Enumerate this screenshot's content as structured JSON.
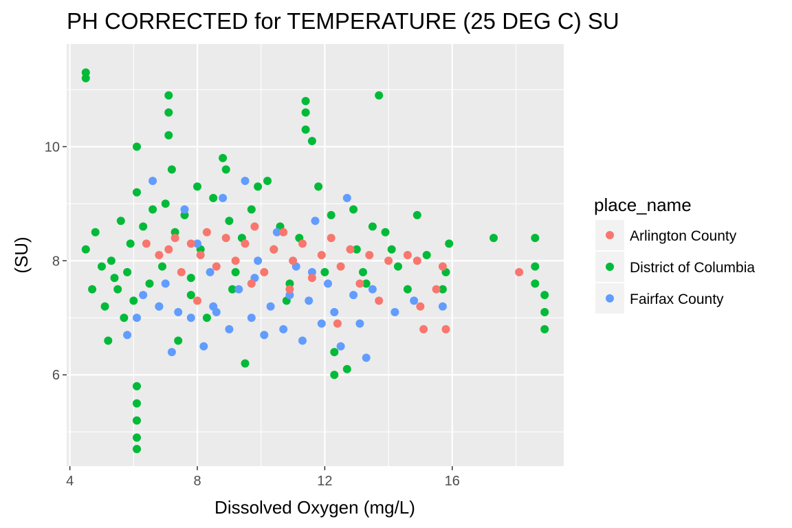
{
  "chart_data": {
    "type": "scatter",
    "title": "PH CORRECTED for TEMPERATURE (25 DEG C) SU",
    "xlabel": "Dissolved Oxygen (mg/L)",
    "ylabel": "(SU)",
    "xlim": [
      3.9,
      19.5
    ],
    "ylim": [
      4.4,
      11.8
    ],
    "x_ticks": [
      4,
      8,
      12,
      16
    ],
    "y_ticks": [
      6,
      8,
      10
    ],
    "x_tick_labels": [
      "4",
      "8",
      "12",
      "16"
    ],
    "y_tick_labels": [
      "6",
      "8",
      "10"
    ],
    "grid": true,
    "legend_title": "place_name",
    "legend_position": "right",
    "series": [
      {
        "name": "Arlington County",
        "color": "#F8766D",
        "points": [
          [
            6.4,
            8.3
          ],
          [
            6.8,
            8.1
          ],
          [
            7.1,
            8.2
          ],
          [
            7.3,
            8.4
          ],
          [
            7.5,
            7.8
          ],
          [
            7.8,
            8.3
          ],
          [
            8.1,
            8.1
          ],
          [
            8.3,
            8.5
          ],
          [
            8.6,
            7.9
          ],
          [
            8.9,
            8.4
          ],
          [
            9.2,
            8.0
          ],
          [
            9.5,
            8.3
          ],
          [
            9.8,
            8.6
          ],
          [
            10.1,
            7.8
          ],
          [
            10.4,
            8.2
          ],
          [
            10.7,
            8.5
          ],
          [
            11.0,
            8.0
          ],
          [
            11.3,
            8.3
          ],
          [
            11.6,
            7.7
          ],
          [
            11.9,
            8.1
          ],
          [
            12.2,
            8.4
          ],
          [
            12.5,
            7.9
          ],
          [
            12.8,
            8.2
          ],
          [
            13.1,
            7.6
          ],
          [
            13.4,
            8.1
          ],
          [
            13.7,
            7.3
          ],
          [
            14.0,
            8.0
          ],
          [
            14.6,
            8.1
          ],
          [
            14.9,
            8.0
          ],
          [
            15.0,
            7.2
          ],
          [
            15.1,
            6.8
          ],
          [
            15.5,
            7.5
          ],
          [
            15.7,
            7.9
          ],
          [
            15.8,
            6.8
          ],
          [
            18.1,
            7.8
          ],
          [
            9.7,
            7.6
          ],
          [
            10.9,
            7.5
          ],
          [
            8.0,
            7.3
          ],
          [
            12.4,
            6.9
          ]
        ]
      },
      {
        "name": "District of Columbia",
        "color": "#00BA38",
        "points": [
          [
            4.5,
            11.3
          ],
          [
            4.5,
            11.2
          ],
          [
            4.5,
            8.2
          ],
          [
            4.7,
            7.5
          ],
          [
            4.8,
            8.5
          ],
          [
            5.0,
            7.9
          ],
          [
            5.1,
            7.2
          ],
          [
            5.2,
            6.6
          ],
          [
            5.3,
            8.0
          ],
          [
            5.5,
            7.5
          ],
          [
            5.6,
            8.7
          ],
          [
            5.7,
            7.0
          ],
          [
            5.8,
            7.8
          ],
          [
            5.9,
            8.3
          ],
          [
            6.0,
            7.3
          ],
          [
            6.1,
            10.0
          ],
          [
            6.1,
            9.2
          ],
          [
            6.1,
            5.8
          ],
          [
            6.1,
            5.5
          ],
          [
            6.1,
            5.2
          ],
          [
            6.1,
            4.9
          ],
          [
            6.1,
            4.7
          ],
          [
            6.3,
            8.6
          ],
          [
            6.5,
            7.6
          ],
          [
            6.6,
            8.9
          ],
          [
            6.8,
            7.2
          ],
          [
            7.0,
            9.0
          ],
          [
            7.1,
            10.9
          ],
          [
            7.1,
            10.6
          ],
          [
            7.1,
            10.2
          ],
          [
            7.2,
            9.6
          ],
          [
            7.3,
            8.5
          ],
          [
            7.4,
            6.6
          ],
          [
            7.6,
            8.8
          ],
          [
            7.8,
            7.4
          ],
          [
            8.0,
            9.3
          ],
          [
            8.1,
            8.2
          ],
          [
            8.3,
            7.0
          ],
          [
            8.5,
            9.1
          ],
          [
            8.8,
            9.8
          ],
          [
            8.9,
            9.6
          ],
          [
            9.0,
            8.7
          ],
          [
            9.2,
            7.8
          ],
          [
            9.4,
            8.4
          ],
          [
            9.5,
            6.2
          ],
          [
            9.7,
            8.9
          ],
          [
            9.9,
            9.3
          ],
          [
            10.2,
            9.4
          ],
          [
            10.4,
            8.2
          ],
          [
            10.6,
            8.6
          ],
          [
            10.9,
            7.6
          ],
          [
            11.2,
            8.4
          ],
          [
            11.4,
            10.8
          ],
          [
            11.4,
            10.6
          ],
          [
            11.4,
            10.3
          ],
          [
            11.6,
            10.1
          ],
          [
            11.8,
            9.3
          ],
          [
            12.0,
            7.8
          ],
          [
            12.2,
            8.8
          ],
          [
            12.3,
            6.4
          ],
          [
            12.3,
            6.0
          ],
          [
            12.7,
            6.1
          ],
          [
            12.9,
            8.9
          ],
          [
            13.0,
            8.2
          ],
          [
            13.3,
            7.6
          ],
          [
            13.5,
            8.6
          ],
          [
            13.7,
            10.9
          ],
          [
            13.9,
            8.5
          ],
          [
            14.1,
            8.2
          ],
          [
            14.3,
            7.9
          ],
          [
            14.6,
            7.5
          ],
          [
            14.9,
            8.8
          ],
          [
            15.2,
            8.1
          ],
          [
            15.8,
            7.8
          ],
          [
            15.9,
            8.3
          ],
          [
            17.3,
            8.4
          ],
          [
            18.6,
            8.4
          ],
          [
            18.6,
            7.9
          ],
          [
            18.6,
            7.6
          ],
          [
            18.9,
            7.4
          ],
          [
            18.9,
            7.1
          ],
          [
            18.9,
            6.8
          ],
          [
            15.7,
            7.5
          ],
          [
            13.2,
            7.8
          ],
          [
            10.8,
            7.3
          ],
          [
            7.8,
            7.7
          ],
          [
            5.4,
            7.7
          ],
          [
            6.9,
            7.9
          ],
          [
            9.1,
            7.5
          ]
        ]
      },
      {
        "name": "Fairfax County",
        "color": "#619CFF",
        "points": [
          [
            5.8,
            6.7
          ],
          [
            6.1,
            7.0
          ],
          [
            6.3,
            7.4
          ],
          [
            6.6,
            9.4
          ],
          [
            6.8,
            7.2
          ],
          [
            7.0,
            7.6
          ],
          [
            7.2,
            6.4
          ],
          [
            7.4,
            7.1
          ],
          [
            7.6,
            8.9
          ],
          [
            7.8,
            7.0
          ],
          [
            8.0,
            8.3
          ],
          [
            8.2,
            6.5
          ],
          [
            8.4,
            7.8
          ],
          [
            8.6,
            7.1
          ],
          [
            8.8,
            9.1
          ],
          [
            9.0,
            6.8
          ],
          [
            9.3,
            7.5
          ],
          [
            9.5,
            9.4
          ],
          [
            9.7,
            7.0
          ],
          [
            9.9,
            8.0
          ],
          [
            10.1,
            6.7
          ],
          [
            10.3,
            7.2
          ],
          [
            10.5,
            8.5
          ],
          [
            10.7,
            6.8
          ],
          [
            10.9,
            7.4
          ],
          [
            11.1,
            7.9
          ],
          [
            11.3,
            6.6
          ],
          [
            11.5,
            7.3
          ],
          [
            11.7,
            8.7
          ],
          [
            11.9,
            6.9
          ],
          [
            12.1,
            7.6
          ],
          [
            12.3,
            7.1
          ],
          [
            12.5,
            6.5
          ],
          [
            12.7,
            9.1
          ],
          [
            12.9,
            7.4
          ],
          [
            13.1,
            6.9
          ],
          [
            13.3,
            6.3
          ],
          [
            13.5,
            7.5
          ],
          [
            14.2,
            7.1
          ],
          [
            14.8,
            7.3
          ],
          [
            15.7,
            7.2
          ],
          [
            9.8,
            7.7
          ],
          [
            11.6,
            7.8
          ],
          [
            8.5,
            7.2
          ]
        ]
      }
    ]
  }
}
